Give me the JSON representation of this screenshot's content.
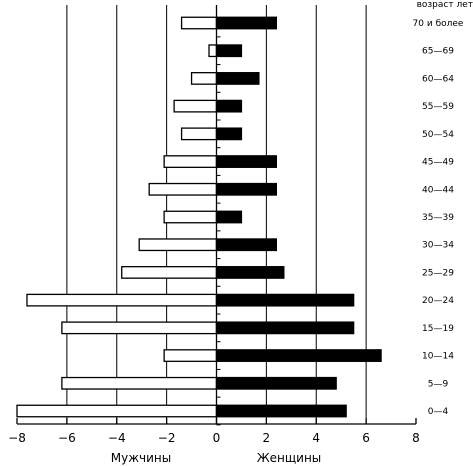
{
  "chart_data": {
    "type": "bar",
    "orientation": "horizontal",
    "layout": "population-pyramid",
    "corner_label": "возраст лет",
    "xlabel_left": "Мужчины",
    "xlabel_right": "Женщины",
    "xlim": [
      -8,
      8
    ],
    "xticks": [
      -8,
      -6,
      -4,
      -2,
      0,
      2,
      4,
      6,
      8
    ],
    "xtick_labels": [
      "−8",
      "−6",
      "−4",
      "−2",
      "0",
      "2",
      "4",
      "6",
      "8"
    ],
    "grid": "vertical lines at ±2, ±4, ±6",
    "categories": [
      "0—4",
      "5—9",
      "10—14",
      "15—19",
      "20—24",
      "25—29",
      "30—34",
      "35—39",
      "40—44",
      "45—49",
      "50—54",
      "55—59",
      "60—64",
      "65—69",
      "70 и более"
    ],
    "series": [
      {
        "name": "Мужчины",
        "fill": "#ffffff",
        "values": [
          -8.0,
          -6.2,
          -2.1,
          -6.2,
          -7.6,
          -3.8,
          -3.1,
          -2.1,
          -2.7,
          -2.1,
          -1.4,
          -1.7,
          -1.0,
          -0.3,
          -1.4
        ]
      },
      {
        "name": "Женщины",
        "fill": "#000000",
        "values": [
          5.2,
          4.8,
          6.6,
          5.5,
          5.5,
          2.7,
          2.4,
          1.0,
          2.4,
          2.4,
          1.0,
          1.0,
          1.7,
          1.0,
          2.4
        ]
      }
    ]
  }
}
